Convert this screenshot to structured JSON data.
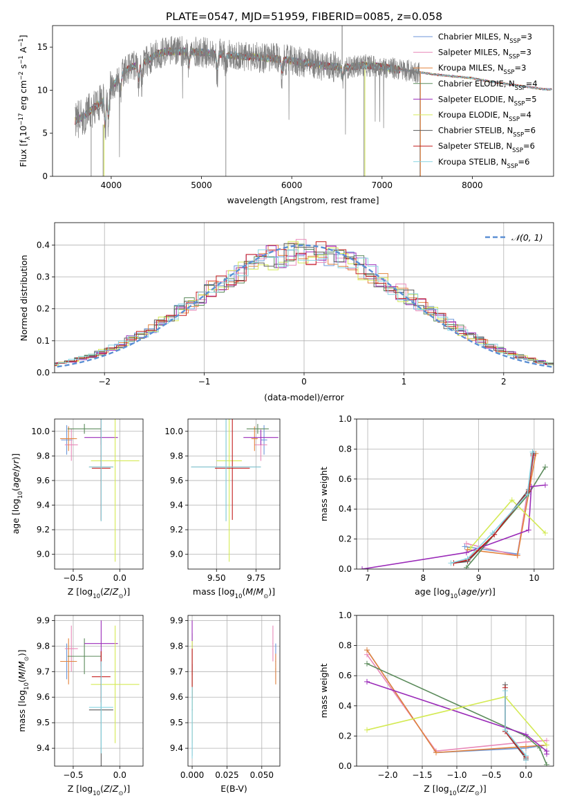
{
  "figure": {
    "title": "PLATE=0547, MJD=51959, FIBERID=0085, z=0.058"
  },
  "colors": {
    "models": [
      "#6b96d8",
      "#e888b8",
      "#e3823c",
      "#5a8a5a",
      "#9a2ab8",
      "#d4ea54",
      "#5a5a5a",
      "#c41c1c",
      "#86d4e2"
    ],
    "data": "#7f7f7f",
    "gauss": "#5b8fd4",
    "grid": "#b0b0b0"
  },
  "legend_spec": [
    "Chabrier MILES, N_SSP=3",
    "Salpeter MILES, N_SSP=3",
    "Kroupa MILES, N_SSP=3",
    "Chabrier ELODIE, N_SSP=4",
    "Salpeter ELODIE, N_SSP=5",
    "Kroupa ELODIE, N_SSP=4",
    "Chabrier STELIB, N_SSP=6",
    "Salpeter STELIB, N_SSP=6",
    "Kroupa STELIB, N_SSP=6"
  ],
  "chart_data": [
    {
      "id": "spectrum",
      "type": "line",
      "xlabel": "wavelength [Angstrom, rest frame]",
      "ylabel": "Flux [f_λ 10^-17 erg cm^-2 s^-1 A^-1]",
      "xlim": [
        3350,
        8900
      ],
      "ylim": [
        0,
        17.5
      ],
      "xticks": [
        4000,
        5000,
        6000,
        7000,
        8000
      ],
      "yticks": [
        0,
        5,
        10,
        15
      ],
      "continuum": {
        "x": [
          3600,
          3700,
          3800,
          3900,
          4000,
          4100,
          4200,
          4300,
          4400,
          4500,
          4600,
          4800,
          5000,
          5200,
          5500,
          5800,
          6000,
          6200,
          6400,
          6600,
          6800,
          7000,
          7200,
          7400,
          7600,
          7800,
          8000,
          8200,
          8400,
          8600,
          8800
        ],
        "y": [
          6.4,
          7.0,
          7.9,
          8.7,
          10.3,
          11.6,
          12.6,
          13.0,
          13.4,
          14.2,
          14.5,
          14.5,
          14.4,
          14.2,
          13.9,
          13.7,
          13.4,
          13.1,
          12.8,
          12.6,
          12.9,
          12.7,
          12.4,
          12.1,
          11.8,
          11.6,
          11.4,
          11.0,
          10.7,
          10.4,
          10.1
        ]
      },
      "legend": [
        "Chabrier MILES, N_SSP=3",
        "Salpeter MILES, N_SSP=3",
        "Kroupa MILES, N_SSP=3",
        "Chabrier ELODIE, N_SSP=4",
        "Salpeter ELODIE, N_SSP=5",
        "Kroupa ELODIE, N_SSP=4",
        "Chabrier STELIB, N_SSP=6",
        "Salpeter STELIB, N_SSP=6",
        "Kroupa STELIB, N_SSP=6"
      ]
    },
    {
      "id": "residuals",
      "type": "line",
      "xlabel": "(data-model)/error",
      "ylabel": "Normed distribution",
      "xlim": [
        -2.5,
        2.5
      ],
      "ylim": [
        0,
        0.47
      ],
      "xticks": [
        -2,
        -1,
        0,
        1,
        2
      ],
      "yticks": [
        0.0,
        0.1,
        0.2,
        0.3,
        0.4
      ],
      "hist_bin_width": 0.1,
      "legend": [
        "𝒩(0, 1)"
      ]
    },
    {
      "id": "age_vs_Z",
      "type": "scatter",
      "xlabel": "Z [log10(Z/Z⊙)]",
      "ylabel": "age [log10(age/yr)]",
      "xlim": [
        -0.7,
        0.25
      ],
      "ylim": [
        8.88,
        10.1
      ],
      "xticks": [
        -0.5,
        0.0
      ],
      "yticks": [
        9.0,
        9.2,
        9.4,
        9.6,
        9.8,
        10.0
      ],
      "points": [
        {
          "x": -0.57,
          "y": 9.93,
          "xerr": 0.06,
          "yerr": 0.12
        },
        {
          "x": -0.52,
          "y": 9.89,
          "xerr": 0.07,
          "yerr": 0.13
        },
        {
          "x": -0.55,
          "y": 9.94,
          "xerr": 0.09,
          "yerr": 0.1
        },
        {
          "x": -0.38,
          "y": 10.02,
          "xerr": 0.18,
          "yerr": 0.04
        },
        {
          "x": -0.2,
          "y": 9.95,
          "xerr": 0.18,
          "yerr": 0.06
        },
        {
          "x": -0.05,
          "y": 9.76,
          "xerr": 0.26,
          "yerr": 0.82
        },
        {
          "x": -0.2,
          "y": 9.71,
          "xerr": 0.13,
          "yerr": 0.44
        },
        {
          "x": -0.2,
          "y": 9.7,
          "xerr": 0.1,
          "yerr": 0.42
        },
        {
          "x": -0.2,
          "y": 9.71,
          "xerr": 0.13,
          "yerr": 0.44
        }
      ]
    },
    {
      "id": "age_vs_mass",
      "type": "scatter",
      "xlabel": "mass [log10(M/M⊙)]",
      "ylabel": "",
      "xlim": [
        9.32,
        9.9
      ],
      "ylim": [
        8.88,
        10.1
      ],
      "xticks": [
        9.5,
        9.75
      ],
      "yticks": [
        9.0,
        9.2,
        9.4,
        9.6,
        9.8,
        10.0
      ],
      "points": [
        {
          "x": 9.8,
          "y": 9.93,
          "xerr": 0.02,
          "yerr": 0.12
        },
        {
          "x": 9.78,
          "y": 9.89,
          "xerr": 0.04,
          "yerr": 0.13
        },
        {
          "x": 9.74,
          "y": 9.94,
          "xerr": 0.02,
          "yerr": 0.1
        },
        {
          "x": 9.76,
          "y": 10.02,
          "xerr": 0.07,
          "yerr": 0.04
        },
        {
          "x": 9.78,
          "y": 9.95,
          "xerr": 0.11,
          "yerr": 0.06
        },
        {
          "x": 9.58,
          "y": 9.76,
          "xerr": 0.08,
          "yerr": 0.82
        },
        {
          "x": 9.56,
          "y": 9.71,
          "xerr": 0.22,
          "yerr": 0.44
        },
        {
          "x": 9.6,
          "y": 9.7,
          "xerr": 0.11,
          "yerr": 0.42
        },
        {
          "x": 9.56,
          "y": 9.71,
          "xerr": 0.22,
          "yerr": 0.44
        }
      ]
    },
    {
      "id": "weight_vs_age",
      "type": "line",
      "xlabel": "age [log10(age/yr)]",
      "ylabel": "mass weight",
      "xlim": [
        6.8,
        10.35
      ],
      "ylim": [
        0,
        1.0
      ],
      "xticks": [
        7,
        8,
        9,
        10
      ],
      "yticks": [
        0.0,
        0.2,
        0.4,
        0.6,
        0.8,
        1.0
      ],
      "series": [
        {
          "x": [
            8.75,
            9.7,
            10.0
          ],
          "y": [
            0.15,
            0.1,
            0.77
          ]
        },
        {
          "x": [
            8.78,
            9.7,
            9.98
          ],
          "y": [
            0.17,
            0.09,
            0.75
          ]
        },
        {
          "x": [
            8.8,
            9.7,
            10.03
          ],
          "y": [
            0.13,
            0.09,
            0.77
          ]
        },
        {
          "x": [
            8.78,
            9.28,
            9.9,
            10.2
          ],
          "y": [
            0.01,
            0.23,
            0.5,
            0.68
          ]
        },
        {
          "x": [
            6.9,
            8.78,
            9.9,
            9.95,
            10.2
          ],
          "y": [
            0.0,
            0.11,
            0.26,
            0.55,
            0.56
          ]
        },
        {
          "x": [
            8.85,
            9.6,
            10.2
          ],
          "y": [
            0.14,
            0.46,
            0.24
          ]
        },
        {
          "x": [
            8.55,
            8.8,
            9.28,
            9.9,
            9.98
          ],
          "y": [
            0.04,
            0.05,
            0.23,
            0.53,
            0.77
          ]
        },
        {
          "x": [
            8.55,
            8.8,
            9.28,
            9.9,
            9.98
          ],
          "y": [
            0.04,
            0.06,
            0.23,
            0.52,
            0.76
          ]
        },
        {
          "x": [
            8.5,
            8.8,
            9.25,
            9.88,
            9.97
          ],
          "y": [
            0.04,
            0.07,
            0.24,
            0.5,
            0.78
          ]
        }
      ]
    },
    {
      "id": "mass_vs_Z",
      "type": "scatter",
      "xlabel": "Z [log10(Z/Z⊙)]",
      "ylabel": "mass [log10(M/M⊙)]",
      "xlim": [
        -0.7,
        0.25
      ],
      "ylim": [
        9.33,
        9.92
      ],
      "xticks": [
        -0.5,
        0.0
      ],
      "yticks": [
        9.4,
        9.5,
        9.6,
        9.7,
        9.8,
        9.9
      ],
      "points": [
        {
          "x": -0.57,
          "y": 9.74,
          "xerr": 0.06,
          "yerr": 0.07
        },
        {
          "x": -0.52,
          "y": 9.79,
          "xerr": 0.07,
          "yerr": 0.09
        },
        {
          "x": -0.55,
          "y": 9.74,
          "xerr": 0.09,
          "yerr": 0.09
        },
        {
          "x": -0.38,
          "y": 9.76,
          "xerr": 0.18,
          "yerr": 0.07
        },
        {
          "x": -0.2,
          "y": 9.81,
          "xerr": 0.18,
          "yerr": 0.09
        },
        {
          "x": -0.05,
          "y": 9.65,
          "xerr": 0.26,
          "yerr": 0.23
        },
        {
          "x": -0.2,
          "y": 9.55,
          "xerr": 0.13,
          "yerr": 0.23
        },
        {
          "x": -0.2,
          "y": 9.68,
          "xerr": 0.1,
          "yerr": 0.1
        },
        {
          "x": -0.2,
          "y": 9.56,
          "xerr": 0.13,
          "yerr": 0.18
        }
      ]
    },
    {
      "id": "mass_vs_ebv",
      "type": "scatter",
      "xlabel": "E(B-V)",
      "ylabel": "",
      "xlim": [
        -0.003,
        0.063
      ],
      "ylim": [
        9.33,
        9.92
      ],
      "xticks": [
        0.0,
        0.025,
        0.05
      ],
      "yticks": [
        9.4,
        9.5,
        9.6,
        9.7,
        9.8,
        9.9
      ],
      "points": [
        {
          "x": 0.06,
          "y": 9.74,
          "xerr": 0.0003,
          "yerr": 0.07
        },
        {
          "x": 0.058,
          "y": 9.81,
          "xerr": 0.0003,
          "yerr": 0.07
        },
        {
          "x": 0.06,
          "y": 9.71,
          "xerr": 0.0003,
          "yerr": 0.06
        },
        {
          "x": 0.0,
          "y": 9.7,
          "xerr": 0.0003,
          "yerr": 0.15
        },
        {
          "x": 0.0,
          "y": 9.8,
          "xerr": 0.0003,
          "yerr": 0.1
        },
        {
          "x": 0.0,
          "y": 9.62,
          "xerr": 0.0003,
          "yerr": 0.2
        },
        {
          "x": 0.0,
          "y": 9.55,
          "xerr": 0.0003,
          "yerr": 0.18
        },
        {
          "x": 0.0,
          "y": 9.69,
          "xerr": 0.0003,
          "yerr": 0.1
        },
        {
          "x": 0.0,
          "y": 9.5,
          "xerr": 0.0003,
          "yerr": 0.14
        }
      ]
    },
    {
      "id": "weight_vs_Z",
      "type": "line",
      "xlabel": "Z [log10(Z/Z⊙)]",
      "ylabel": "mass weight",
      "xlim": [
        -2.45,
        0.4
      ],
      "ylim": [
        0,
        1.0
      ],
      "xticks": [
        -2.0,
        -1.5,
        -1.0,
        -0.5,
        0.0,
        0.5
      ],
      "yticks": [
        0.0,
        0.2,
        0.4,
        0.6,
        0.8,
        1.0
      ],
      "series": [
        {
          "x": [
            -2.3,
            -1.3,
            0.0,
            0.3
          ],
          "y": [
            0.77,
            0.09,
            0.12,
            0.14
          ]
        },
        {
          "x": [
            -2.3,
            -1.3,
            0.0,
            0.3
          ],
          "y": [
            0.74,
            0.1,
            0.16,
            0.17
          ]
        },
        {
          "x": [
            -2.3,
            -1.3,
            0.0,
            0.3
          ],
          "y": [
            0.77,
            0.09,
            0.13,
            0.14
          ]
        },
        {
          "x": [
            -2.3,
            0.0,
            0.2,
            0.3
          ],
          "y": [
            0.68,
            0.2,
            0.12,
            0.01
          ]
        },
        {
          "x": [
            -2.3,
            0.0,
            0.3,
            0.3
          ],
          "y": [
            0.56,
            0.21,
            0.1,
            0.08
          ]
        },
        {
          "x": [
            -2.3,
            -0.3,
            0.3
          ],
          "y": [
            0.24,
            0.46,
            0.14
          ]
        },
        {
          "x": [
            -0.3,
            -0.3,
            0.0,
            0.0
          ],
          "y": [
            0.54,
            0.23,
            0.05,
            0.04
          ]
        },
        {
          "x": [
            -0.3,
            -0.3,
            0.0,
            0.0
          ],
          "y": [
            0.52,
            0.23,
            0.06,
            0.04
          ]
        },
        {
          "x": [
            -0.3,
            -0.3,
            0.0,
            0.0
          ],
          "y": [
            0.5,
            0.24,
            0.07,
            0.04
          ]
        }
      ]
    }
  ]
}
